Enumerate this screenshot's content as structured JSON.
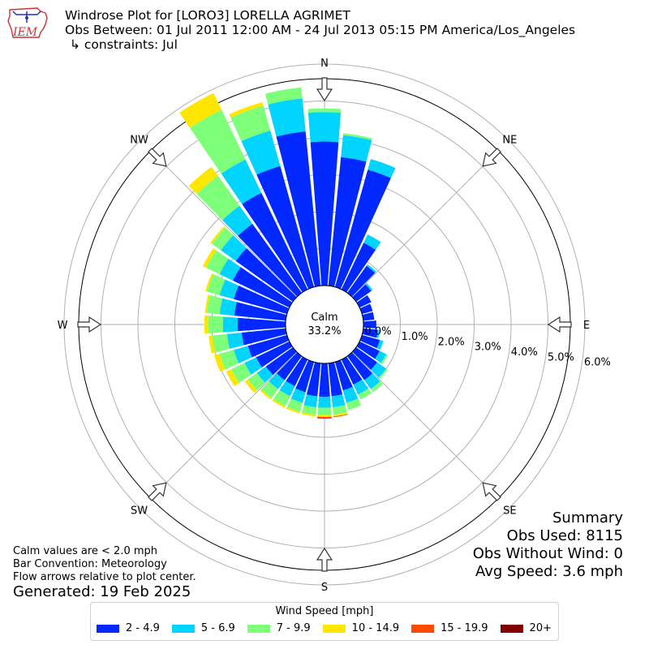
{
  "header": {
    "logo_text": "IEM",
    "title": "Windrose Plot for [LORO3] LORELLA AGRIMET",
    "subtitle": "Obs Between: 01 Jul 2011 12:00 AM - 24 Jul 2013 05:15 PM America/Los_Angeles",
    "constraints": "↳ constraints: Jul"
  },
  "directions": {
    "N": "N",
    "NE": "NE",
    "E": "E",
    "SE": "SE",
    "S": "S",
    "SW": "SW",
    "W": "W",
    "NW": "NW"
  },
  "calm": {
    "label": "Calm",
    "value": "33.2%"
  },
  "summary": {
    "title": "Summary",
    "obs_used": "Obs Used: 8115",
    "obs_without_wind": "Obs Without Wind: 0",
    "avg_speed": "Avg Speed: 3.6 mph"
  },
  "notes": {
    "calm_note": "Calm values are < 2.0 mph",
    "bar_convention": "Bar Convention: Meteorology",
    "flow_arrows": "Flow arrows relative to plot center.",
    "generated": "Generated: 19 Feb 2025"
  },
  "legend": {
    "title": "Wind Speed [mph]",
    "items": [
      {
        "label": "2 - 4.9",
        "color": "#0028ff"
      },
      {
        "label": "5 - 6.9",
        "color": "#00d4ff"
      },
      {
        "label": "7 - 9.9",
        "color": "#7dff7a"
      },
      {
        "label": "10 - 14.9",
        "color": "#ffe600"
      },
      {
        "label": "15 - 19.9",
        "color": "#ff4a00"
      },
      {
        "label": "20+",
        "color": "#800000"
      }
    ]
  },
  "chart_data": {
    "type": "windrose",
    "radial_unit": "%",
    "rlim": [
      0,
      6.0
    ],
    "r_ticks": [
      "0.0%",
      "1.0%",
      "2.0%",
      "3.0%",
      "4.0%",
      "5.0%",
      "6.0%"
    ],
    "r_tick_values": [
      0,
      1,
      2,
      3,
      4,
      5,
      6
    ],
    "bar_convention": "meteorology",
    "calm_percent": 33.2,
    "directions_deg": [
      0,
      10,
      20,
      30,
      40,
      50,
      60,
      70,
      80,
      90,
      100,
      110,
      120,
      130,
      140,
      150,
      160,
      170,
      180,
      190,
      200,
      210,
      220,
      230,
      240,
      250,
      260,
      270,
      280,
      290,
      300,
      310,
      320,
      330,
      340,
      350
    ],
    "series": [
      {
        "name": "2 - 4.9",
        "color": "#0028ff",
        "values": [
          3.9,
          3.5,
          3.3,
          1.4,
          0.9,
          0.5,
          0.35,
          0.3,
          0.3,
          0.35,
          0.4,
          0.5,
          0.6,
          0.7,
          0.8,
          0.75,
          0.8,
          0.9,
          0.9,
          0.9,
          0.85,
          0.8,
          0.8,
          0.9,
          1.0,
          1.1,
          1.2,
          1.3,
          1.4,
          1.5,
          1.7,
          1.9,
          2.3,
          2.9,
          3.4,
          4.2
        ]
      },
      {
        "name": "5 - 6.9",
        "color": "#00d4ff",
        "values": [
          0.8,
          0.6,
          0.3,
          0.25,
          0.05,
          0.05,
          0.0,
          0.0,
          0.0,
          0.0,
          0.05,
          0.1,
          0.2,
          0.3,
          0.3,
          0.3,
          0.35,
          0.3,
          0.3,
          0.3,
          0.3,
          0.3,
          0.3,
          0.3,
          0.35,
          0.4,
          0.4,
          0.4,
          0.4,
          0.4,
          0.4,
          0.5,
          0.6,
          1.0,
          1.0,
          0.9
        ]
      },
      {
        "name": "7 - 9.9",
        "color": "#7dff7a",
        "values": [
          0.1,
          0.05,
          0.0,
          0.0,
          0.0,
          0.0,
          0.0,
          0.0,
          0.0,
          0.0,
          0.0,
          0.0,
          0.05,
          0.05,
          0.1,
          0.15,
          0.2,
          0.2,
          0.2,
          0.2,
          0.25,
          0.3,
          0.3,
          0.3,
          0.4,
          0.4,
          0.4,
          0.4,
          0.35,
          0.35,
          0.4,
          0.3,
          1.0,
          1.5,
          0.7,
          0.3
        ]
      },
      {
        "name": "10 - 14.9",
        "color": "#ffe600",
        "values": [
          0.0,
          0.0,
          0.0,
          0.0,
          0.0,
          0.0,
          0.0,
          0.0,
          0.0,
          0.0,
          0.0,
          0.0,
          0.0,
          0.0,
          0.0,
          0.0,
          0.0,
          0.05,
          0.05,
          0.05,
          0.05,
          0.05,
          0.05,
          0.1,
          0.15,
          0.15,
          0.1,
          0.1,
          0.05,
          0.05,
          0.1,
          0.05,
          0.3,
          0.5,
          0.1,
          0.0
        ]
      },
      {
        "name": "15 - 19.9",
        "color": "#ff4a00",
        "values": [
          0,
          0,
          0,
          0,
          0,
          0,
          0,
          0,
          0,
          0,
          0,
          0,
          0,
          0,
          0,
          0,
          0,
          0.02,
          0.05,
          0,
          0,
          0,
          0,
          0,
          0,
          0,
          0,
          0,
          0,
          0,
          0,
          0,
          0,
          0,
          0,
          0
        ]
      },
      {
        "name": "20+",
        "color": "#800000",
        "values": [
          0,
          0,
          0,
          0,
          0,
          0,
          0,
          0,
          0,
          0,
          0,
          0,
          0,
          0,
          0,
          0,
          0,
          0,
          0,
          0,
          0,
          0,
          0,
          0,
          0,
          0,
          0,
          0,
          0,
          0,
          0,
          0,
          0,
          0,
          0,
          0
        ]
      }
    ]
  }
}
